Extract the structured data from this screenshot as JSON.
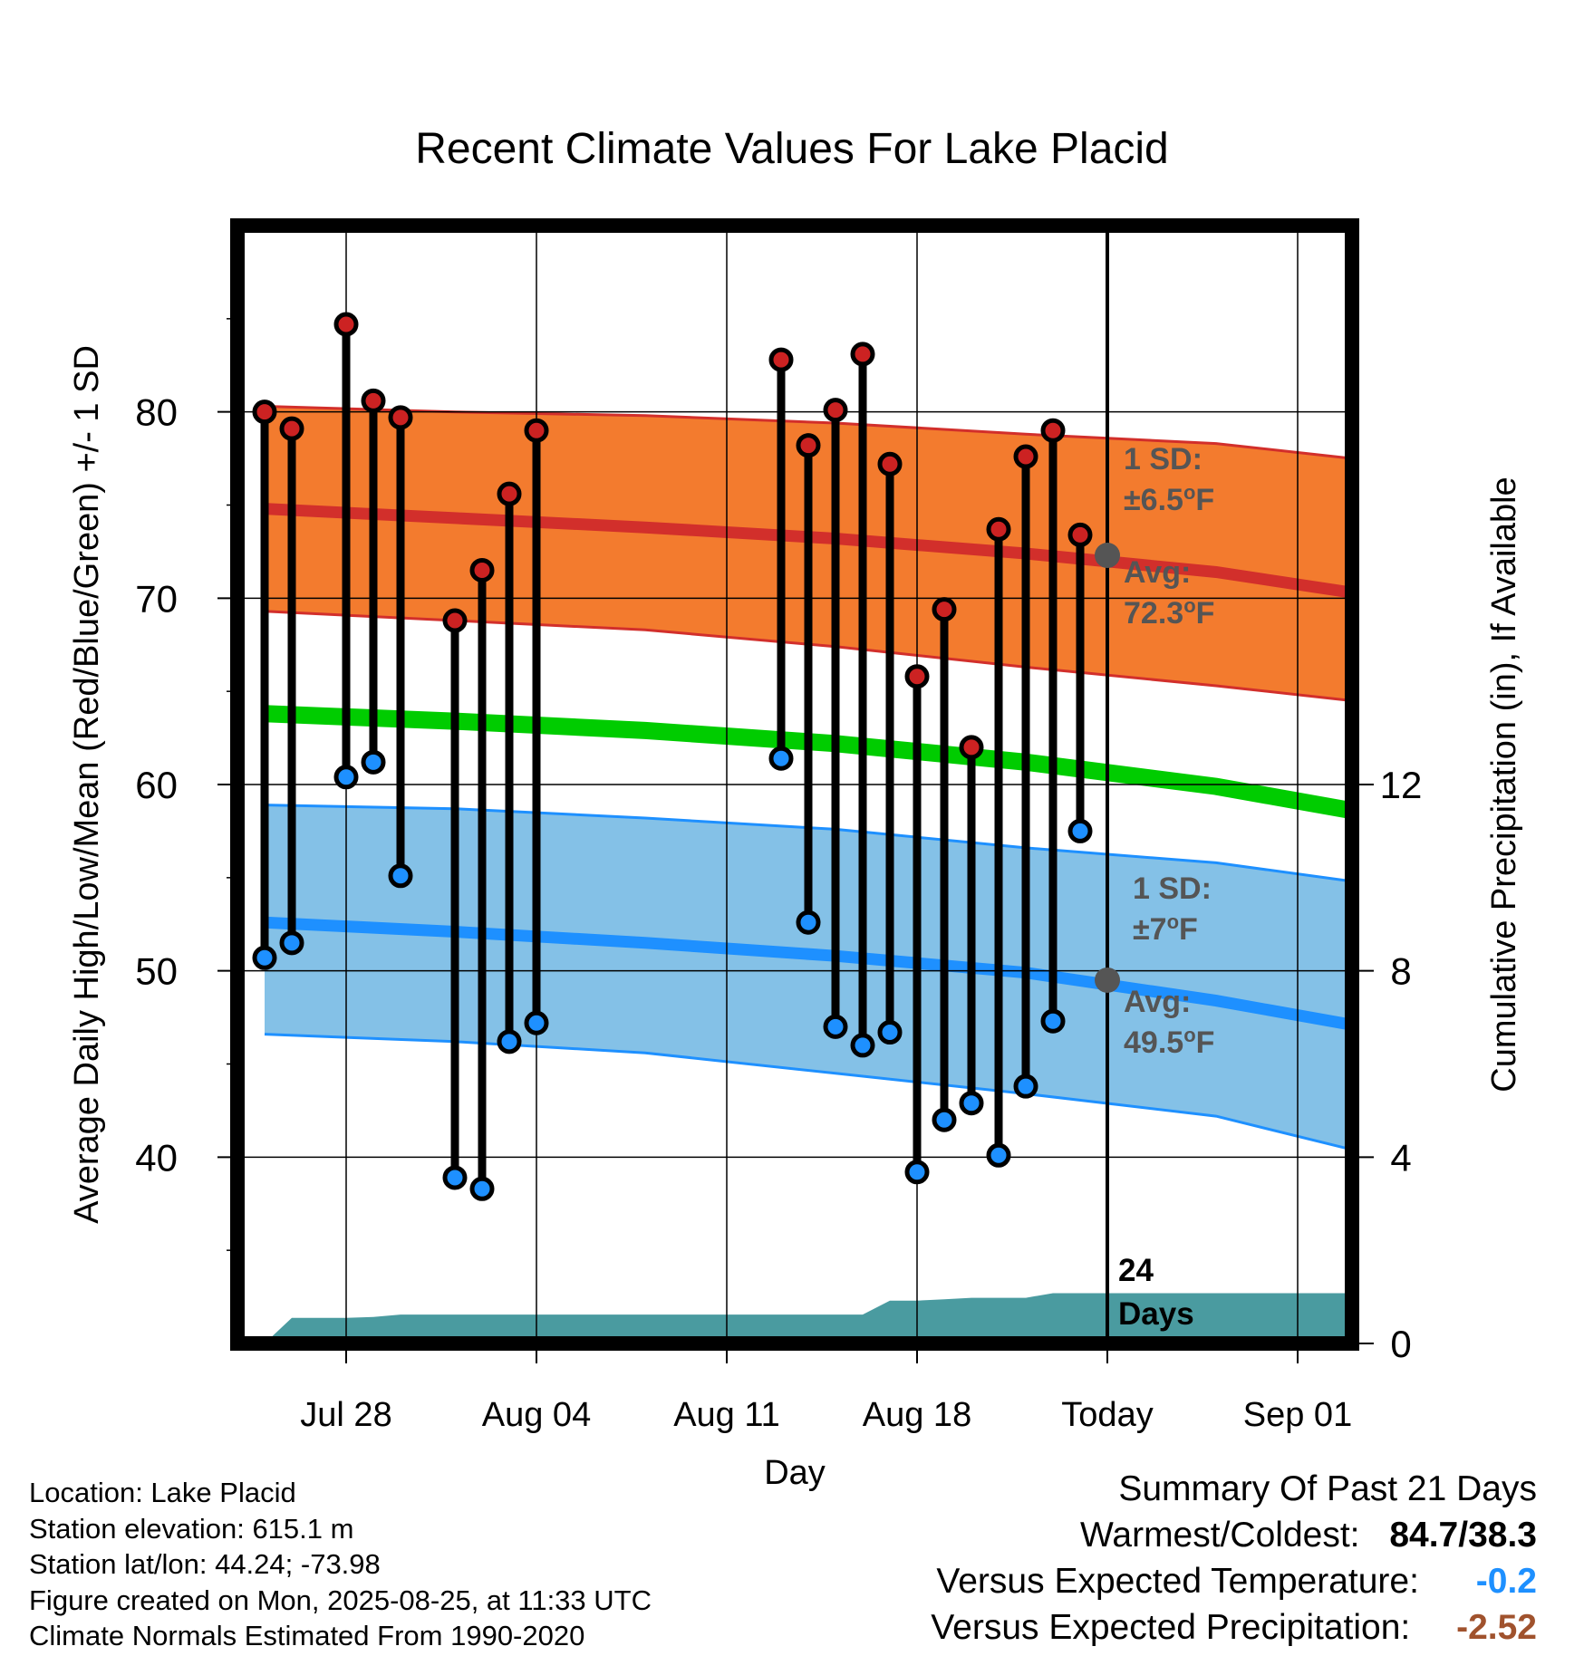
{
  "chart_data": {
    "type": "line",
    "title": "Recent Climate Values For Lake Placid",
    "xlabel": "Day",
    "ylabel": "Average Daily High/Low/Mean (Red/Blue/Green) +/- 1 SD",
    "y2label": "Cumulative Precipitation (in), If Available",
    "x_tick_labels": [
      "Jul 28",
      "Aug 04",
      "Aug 11",
      "Aug 18",
      "Today",
      "Sep 01"
    ],
    "x_tick_dates": [
      "2025-07-28",
      "2025-08-04",
      "2025-08-11",
      "2025-08-18",
      "2025-08-25",
      "2025-09-01"
    ],
    "x_range": [
      "2025-07-24",
      "2025-09-03"
    ],
    "ylim": [
      30,
      90
    ],
    "y_ticks": [
      40,
      50,
      60,
      70,
      80
    ],
    "y2lim": [
      0,
      24
    ],
    "y2_ticks": [
      0,
      4,
      8,
      12
    ],
    "grid": true,
    "today_date": "2025-08-25",
    "normals": {
      "dates": [
        "2025-07-25",
        "2025-08-01",
        "2025-08-08",
        "2025-08-15",
        "2025-08-22",
        "2025-08-29",
        "2025-09-03"
      ],
      "high_mean": [
        74.8,
        74.3,
        73.8,
        73.2,
        72.4,
        71.4,
        70.3
      ],
      "high_upper": [
        80.3,
        80.0,
        79.8,
        79.4,
        78.8,
        78.3,
        77.5
      ],
      "high_lower": [
        69.3,
        68.8,
        68.3,
        67.4,
        66.3,
        65.3,
        64.5
      ],
      "mean": [
        63.8,
        63.4,
        62.9,
        62.2,
        61.2,
        59.9,
        58.6
      ],
      "low_mean": [
        52.6,
        52.1,
        51.5,
        50.8,
        49.9,
        48.4,
        47.1
      ],
      "low_upper": [
        58.9,
        58.7,
        58.2,
        57.6,
        56.6,
        55.8,
        54.8
      ],
      "low_lower": [
        46.6,
        46.2,
        45.6,
        44.5,
        43.4,
        42.2,
        40.4
      ]
    },
    "series": [
      {
        "name": "High",
        "color": "#cc2222",
        "dates": [
          "2025-07-25",
          "2025-07-26",
          "2025-07-28",
          "2025-07-29",
          "2025-07-30",
          "2025-08-01",
          "2025-08-02",
          "2025-08-03",
          "2025-08-04",
          "2025-08-13",
          "2025-08-14",
          "2025-08-15",
          "2025-08-16",
          "2025-08-17",
          "2025-08-18",
          "2025-08-19",
          "2025-08-20",
          "2025-08-21",
          "2025-08-22",
          "2025-08-23",
          "2025-08-24"
        ],
        "values": [
          80.0,
          79.1,
          84.7,
          80.6,
          79.7,
          68.8,
          71.5,
          75.6,
          79.0,
          82.8,
          78.2,
          80.1,
          83.1,
          77.2,
          65.8,
          69.4,
          62.0,
          73.7,
          77.6,
          79.0,
          73.4
        ]
      },
      {
        "name": "Low",
        "color": "#1e90ff",
        "dates": [
          "2025-07-25",
          "2025-07-26",
          "2025-07-28",
          "2025-07-29",
          "2025-07-30",
          "2025-08-01",
          "2025-08-02",
          "2025-08-03",
          "2025-08-04",
          "2025-08-13",
          "2025-08-14",
          "2025-08-15",
          "2025-08-16",
          "2025-08-17",
          "2025-08-18",
          "2025-08-19",
          "2025-08-20",
          "2025-08-21",
          "2025-08-22",
          "2025-08-23",
          "2025-08-24"
        ],
        "values": [
          50.7,
          51.5,
          60.4,
          61.2,
          55.1,
          38.9,
          38.3,
          46.2,
          47.2,
          61.4,
          52.6,
          47.0,
          46.0,
          46.7,
          39.2,
          42.0,
          42.9,
          40.1,
          43.8,
          47.3,
          57.5
        ]
      }
    ],
    "precipitation": {
      "dates": [
        "2025-07-25",
        "2025-07-26",
        "2025-07-27",
        "2025-07-28",
        "2025-07-29",
        "2025-07-30",
        "2025-08-01",
        "2025-08-04",
        "2025-08-11",
        "2025-08-16",
        "2025-08-17",
        "2025-08-18",
        "2025-08-19",
        "2025-08-20",
        "2025-08-22",
        "2025-08-23",
        "2025-08-24",
        "2025-09-03"
      ],
      "values": [
        0.0,
        0.55,
        0.55,
        0.55,
        0.57,
        0.62,
        0.62,
        0.62,
        0.62,
        0.62,
        0.92,
        0.92,
        0.95,
        0.98,
        0.98,
        1.08,
        1.08,
        1.08
      ],
      "color": "#4a9ba0"
    },
    "annotations": {
      "high_sd_label": "1 SD:",
      "high_sd_value": "±6.5",
      "high_avg_label": "Avg:",
      "high_avg_value": "72.3",
      "low_sd_label": "1 SD:",
      "low_sd_value": "±7",
      "low_avg_label": "Avg:",
      "low_avg_value": "49.5",
      "degree_unit": "o",
      "temp_unit": "F",
      "days_count": "24",
      "days_label": "Days"
    },
    "colors": {
      "high_band": "#f37b2e",
      "high_line": "#d22f2b",
      "mean_line": "#00cc00",
      "low_band": "#84c1e7",
      "low_line": "#1e90ff",
      "annotation_text": "#555555",
      "today_dot": "#555555"
    }
  },
  "footer": {
    "location": "Location: Lake Placid",
    "elevation": "Station elevation: 615.1 m",
    "latlon": "Station lat/lon: 44.24; -73.98",
    "created": "Figure created on Mon, 2025-08-25, at 11:33 UTC",
    "normals": "Climate Normals Estimated From 1990-2020"
  },
  "summary": {
    "heading": "Summary Of Past 21 Days",
    "warmest_label": "Warmest/Coldest:",
    "warmest_value": "84.7/38.3",
    "temp_label": "Versus Expected Temperature:",
    "temp_value": "-0.2",
    "temp_color": "#1e90ff",
    "precip_label": "Versus Expected Precipitation:",
    "precip_value": "-2.52",
    "precip_color": "#a0522d"
  }
}
